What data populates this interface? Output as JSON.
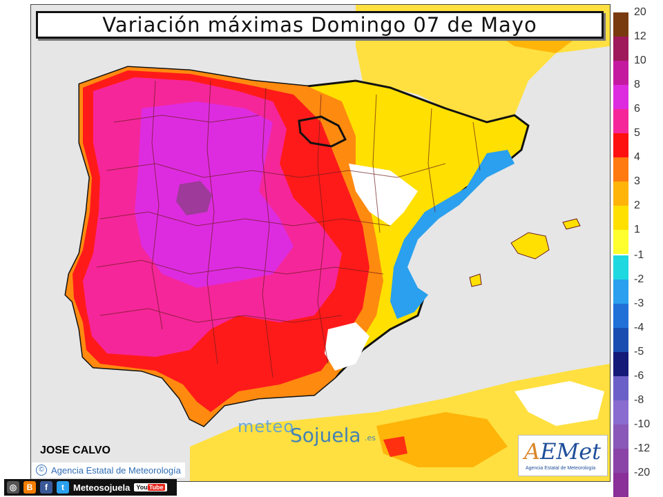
{
  "title": "Variación máximas Domingo 07 de Mayo",
  "author": "JOSE CALVO",
  "agency_credit": "Agencia Estatal de Meteorología",
  "watermark": {
    "part1": "meteo",
    "part2": "Sojuela",
    "suffix": ".es"
  },
  "logo": {
    "name_initial": "A",
    "name_rest": "EMet",
    "subtitle": "Agencia Estatal de Meteorología"
  },
  "legend": {
    "positive": [
      {
        "label": "20",
        "color": "#7a3a10"
      },
      {
        "label": "12",
        "color": "#9e1a5a"
      },
      {
        "label": "10",
        "color": "#c41aa0"
      },
      {
        "label": "8",
        "color": "#dd2ce0"
      },
      {
        "label": "6",
        "color": "#f5269a"
      },
      {
        "label": "5",
        "color": "#ff1010"
      },
      {
        "label": "4",
        "color": "#ff7a10"
      },
      {
        "label": "3",
        "color": "#ffb40a"
      },
      {
        "label": "2",
        "color": "#ffe000"
      },
      {
        "label": "1",
        "color": "#ffff30"
      }
    ],
    "negative": [
      {
        "label": "-1",
        "color": "#20d8e0"
      },
      {
        "label": "-2",
        "color": "#2aa0ee"
      },
      {
        "label": "-3",
        "color": "#2070d8"
      },
      {
        "label": "-4",
        "color": "#1a4db0"
      },
      {
        "label": "-5",
        "color": "#141a78"
      },
      {
        "label": "-6",
        "color": "#6a60c8"
      },
      {
        "label": "-8",
        "color": "#8a6cd0"
      },
      {
        "label": "-10",
        "color": "#8a58b8"
      },
      {
        "label": "-12",
        "color": "#8a44a8"
      },
      {
        "label": "-20",
        "color": "#8a3098"
      }
    ]
  },
  "social": {
    "handle": "Meteosojuela",
    "youtube_you": "You",
    "youtube_tube": "Tube"
  },
  "map_colors": {
    "sea": "#e6e6e6",
    "border": "#111111",
    "province_lines": "#6b1a1a"
  }
}
